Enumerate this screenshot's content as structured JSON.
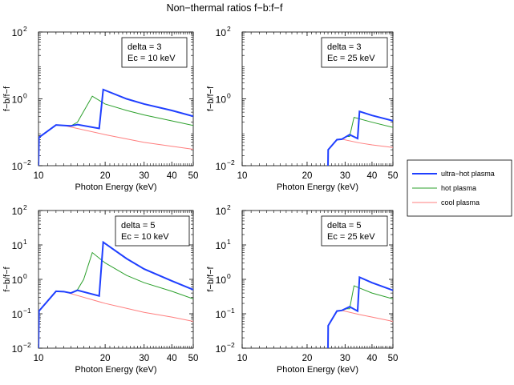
{
  "figure_title": "Non−thermal ratios f−b:f−f",
  "legend": {
    "entries": [
      {
        "label": "ultra−hot plasma",
        "color": "#1f3fff"
      },
      {
        "label": "hot plasma",
        "color": "#2ca02c"
      },
      {
        "label": "cool plasma",
        "color": "#ff7f7f"
      }
    ]
  },
  "chart_data": [
    {
      "type": "line",
      "id": "p1",
      "annotation": [
        "delta = 3",
        "Ec = 10 keV"
      ],
      "xlabel": "Photon Energy (keV)",
      "ylabel": "f−b/f−f",
      "xscale": "log",
      "yscale": "log",
      "xlim": [
        10,
        50
      ],
      "ylim": [
        0.01,
        100
      ],
      "xticks": [
        {
          "v": 10,
          "label": "10"
        },
        {
          "v": 20,
          "label": "20"
        },
        {
          "v": 30,
          "label": "30"
        },
        {
          "v": 40,
          "label": "40"
        },
        {
          "v": 50,
          "label": "50"
        }
      ],
      "yticks": [
        {
          "v": 0.01,
          "base": "10",
          "exp": "−2"
        },
        {
          "v": 1,
          "base": "10",
          "exp": "0"
        },
        {
          "v": 100,
          "base": "10",
          "exp": "2"
        }
      ],
      "series": [
        {
          "name": "cool plasma",
          "color": "#ff7f7f",
          "width": 1,
          "x": [
            10.0,
            10.05,
            12.0,
            13.0,
            20,
            30,
            40,
            50
          ],
          "y": [
            0.01,
            0.07,
            0.165,
            0.16,
            0.085,
            0.05,
            0.038,
            0.031
          ]
        },
        {
          "name": "hot plasma",
          "color": "#2ca02c",
          "width": 1,
          "x": [
            10.0,
            10.05,
            12.0,
            13.0,
            14.0,
            15.0,
            17.5,
            20,
            25,
            30,
            40,
            50
          ],
          "y": [
            0.01,
            0.07,
            0.165,
            0.16,
            0.155,
            0.2,
            1.2,
            0.7,
            0.45,
            0.33,
            0.22,
            0.16
          ]
        },
        {
          "name": "ultra-hot plasma",
          "color": "#1f3fff",
          "width": 2,
          "x": [
            10.0,
            10.05,
            12.0,
            13.0,
            14.0,
            15.0,
            18.8,
            19.6,
            25,
            30,
            40,
            50
          ],
          "y": [
            0.01,
            0.07,
            0.165,
            0.16,
            0.155,
            0.17,
            0.13,
            1.9,
            1.0,
            0.7,
            0.45,
            0.3
          ]
        }
      ]
    },
    {
      "type": "line",
      "id": "p2",
      "annotation": [
        "delta = 3",
        "Ec = 25 keV"
      ],
      "xlabel": "Photon Energy (keV)",
      "ylabel": "f−b/f−f",
      "xscale": "log",
      "yscale": "log",
      "xlim": [
        10,
        50
      ],
      "ylim": [
        0.01,
        100
      ],
      "xticks": [
        {
          "v": 10,
          "label": "10"
        },
        {
          "v": 20,
          "label": "20"
        },
        {
          "v": 30,
          "label": "30"
        },
        {
          "v": 40,
          "label": "40"
        },
        {
          "v": 50,
          "label": "50"
        }
      ],
      "yticks": [
        {
          "v": 0.01,
          "base": "10",
          "exp": "−2"
        },
        {
          "v": 1,
          "base": "10",
          "exp": "0"
        },
        {
          "v": 100,
          "base": "10",
          "exp": "2"
        }
      ],
      "series": [
        {
          "name": "cool plasma",
          "color": "#ff7f7f",
          "width": 1,
          "x": [
            25.0,
            25.05,
            27.5,
            29.0,
            35,
            40,
            50
          ],
          "y": [
            0.01,
            0.03,
            0.06,
            0.062,
            0.048,
            0.042,
            0.035
          ]
        },
        {
          "name": "hot plasma",
          "color": "#2ca02c",
          "width": 1,
          "x": [
            25.0,
            25.05,
            27.5,
            29.0,
            30.5,
            31.5,
            33.0,
            40,
            50
          ],
          "y": [
            0.01,
            0.03,
            0.06,
            0.062,
            0.075,
            0.075,
            0.28,
            0.2,
            0.14
          ]
        },
        {
          "name": "ultra-hot plasma",
          "color": "#1f3fff",
          "width": 2,
          "x": [
            25.0,
            25.05,
            27.5,
            29.0,
            31.5,
            34.3,
            35.0,
            40,
            50
          ],
          "y": [
            0.01,
            0.03,
            0.06,
            0.062,
            0.085,
            0.065,
            0.42,
            0.32,
            0.22
          ]
        }
      ]
    },
    {
      "type": "line",
      "id": "p3",
      "annotation": [
        "delta = 5",
        "Ec = 10 keV"
      ],
      "xlabel": "Photon Energy (keV)",
      "ylabel": "f−b/f−f",
      "xscale": "log",
      "yscale": "log",
      "xlim": [
        10,
        50
      ],
      "ylim": [
        0.01,
        100
      ],
      "xticks": [
        {
          "v": 10,
          "label": "10"
        },
        {
          "v": 20,
          "label": "20"
        },
        {
          "v": 30,
          "label": "30"
        },
        {
          "v": 40,
          "label": "40"
        },
        {
          "v": 50,
          "label": "50"
        }
      ],
      "yticks": [
        {
          "v": 0.01,
          "base": "10",
          "exp": "−2"
        },
        {
          "v": 0.1,
          "base": "10",
          "exp": "−1"
        },
        {
          "v": 1,
          "base": "10",
          "exp": "0"
        },
        {
          "v": 10,
          "base": "10",
          "exp": "1"
        },
        {
          "v": 100,
          "base": "10",
          "exp": "2"
        }
      ],
      "series": [
        {
          "name": "cool plasma",
          "color": "#ff7f7f",
          "width": 1,
          "x": [
            10.0,
            10.05,
            12.0,
            13.0,
            20,
            30,
            40,
            50
          ],
          "y": [
            0.01,
            0.12,
            0.45,
            0.44,
            0.2,
            0.11,
            0.08,
            0.06
          ]
        },
        {
          "name": "hot plasma",
          "color": "#2ca02c",
          "width": 1,
          "x": [
            10.0,
            10.05,
            12.0,
            13.0,
            14.0,
            15.0,
            16.0,
            17.5,
            20,
            25,
            30,
            40,
            50
          ],
          "y": [
            0.01,
            0.12,
            0.45,
            0.44,
            0.4,
            0.5,
            1.0,
            6.0,
            3.0,
            1.3,
            0.8,
            0.45,
            0.27
          ]
        },
        {
          "name": "ultra-hot plasma",
          "color": "#1f3fff",
          "width": 2,
          "x": [
            10.0,
            10.05,
            12.0,
            13.0,
            14.0,
            15.0,
            18.8,
            19.6,
            25,
            30,
            40,
            50
          ],
          "y": [
            0.01,
            0.12,
            0.45,
            0.44,
            0.4,
            0.48,
            0.33,
            12.0,
            4.0,
            2.0,
            0.9,
            0.5
          ]
        }
      ]
    },
    {
      "type": "line",
      "id": "p4",
      "annotation": [
        "delta = 5",
        "Ec = 25 keV"
      ],
      "xlabel": "Photon Energy (keV)",
      "ylabel": "f−b/f−f",
      "xscale": "log",
      "yscale": "log",
      "xlim": [
        10,
        50
      ],
      "ylim": [
        0.01,
        100
      ],
      "xticks": [
        {
          "v": 10,
          "label": "10"
        },
        {
          "v": 20,
          "label": "20"
        },
        {
          "v": 30,
          "label": "30"
        },
        {
          "v": 40,
          "label": "40"
        },
        {
          "v": 50,
          "label": "50"
        }
      ],
      "yticks": [
        {
          "v": 0.01,
          "base": "10",
          "exp": "−2"
        },
        {
          "v": 0.1,
          "base": "10",
          "exp": "−1"
        },
        {
          "v": 1,
          "base": "10",
          "exp": "0"
        },
        {
          "v": 10,
          "base": "10",
          "exp": "1"
        },
        {
          "v": 100,
          "base": "10",
          "exp": "2"
        }
      ],
      "series": [
        {
          "name": "cool plasma",
          "color": "#ff7f7f",
          "width": 1,
          "x": [
            25.0,
            25.05,
            27.5,
            29.0,
            35,
            40,
            50
          ],
          "y": [
            0.01,
            0.045,
            0.12,
            0.125,
            0.095,
            0.08,
            0.06
          ]
        },
        {
          "name": "hot plasma",
          "color": "#2ca02c",
          "width": 1,
          "x": [
            25.0,
            25.05,
            27.5,
            29.0,
            30.5,
            31.5,
            33.0,
            40,
            50
          ],
          "y": [
            0.01,
            0.045,
            0.12,
            0.125,
            0.14,
            0.14,
            0.65,
            0.4,
            0.27
          ]
        },
        {
          "name": "ultra-hot plasma",
          "color": "#1f3fff",
          "width": 2,
          "x": [
            25.0,
            25.05,
            27.5,
            29.0,
            31.5,
            34.3,
            35.0,
            40,
            50
          ],
          "y": [
            0.01,
            0.045,
            0.12,
            0.125,
            0.16,
            0.12,
            1.15,
            0.8,
            0.48
          ]
        }
      ]
    }
  ]
}
